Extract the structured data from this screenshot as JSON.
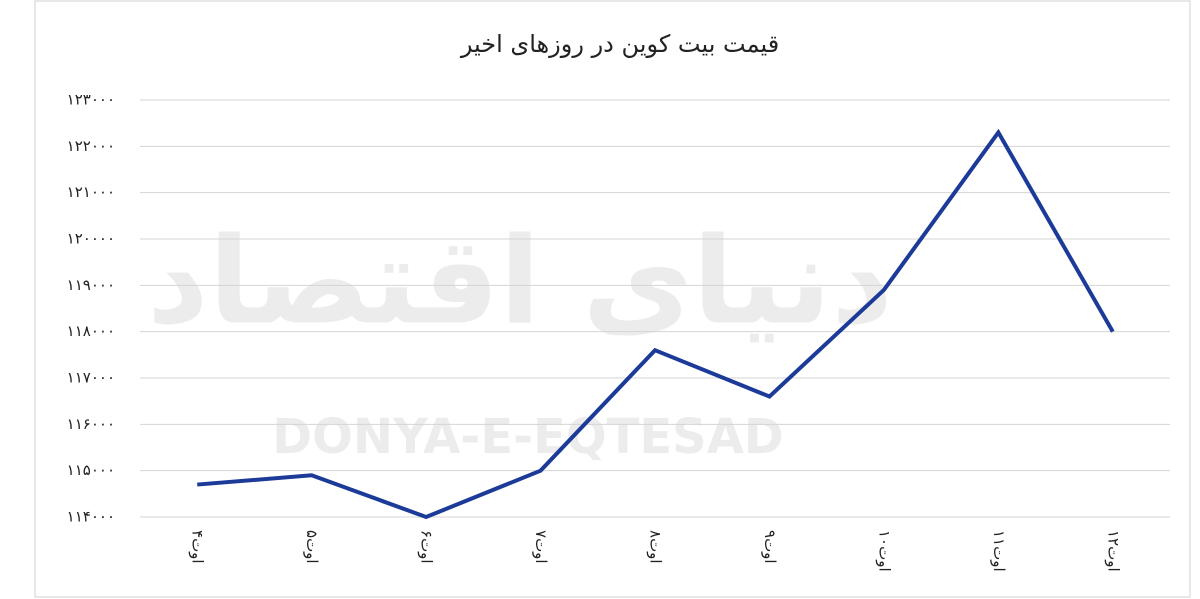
{
  "chart_data": {
    "type": "line",
    "title": "قیمت بیت کوین در روزهای اخیر",
    "watermark": "DONYA-E-EQTESAD",
    "watermark_fa": "دنیای اقتصاد",
    "categories": [
      "۴اوت",
      "۵اوت",
      "۶اوت",
      "۷اوت",
      "۸اوت",
      "۹اوت",
      "۱۰اوت",
      "۱۱اوت",
      "۱۲اوت"
    ],
    "series": [
      {
        "name": "قیمت بیت کوین",
        "color": "#1c3a98",
        "values": [
          114700,
          114900,
          114000,
          115000,
          117600,
          116600,
          118900,
          122300,
          118000
        ]
      }
    ],
    "ylim": [
      114000,
      123000
    ],
    "yticks": [
      {
        "value": 114000,
        "label": "۱۱۴۰۰۰"
      },
      {
        "value": 115000,
        "label": "۱۱۵۰۰۰"
      },
      {
        "value": 116000,
        "label": "۱۱۶۰۰۰"
      },
      {
        "value": 117000,
        "label": "۱۱۷۰۰۰"
      },
      {
        "value": 118000,
        "label": "۱۱۸۰۰۰"
      },
      {
        "value": 119000,
        "label": "۱۱۹۰۰۰"
      },
      {
        "value": 120000,
        "label": "۱۲۰۰۰۰"
      },
      {
        "value": 121000,
        "label": "۱۲۱۰۰۰"
      },
      {
        "value": 122000,
        "label": "۱۲۲۰۰۰"
      },
      {
        "value": 123000,
        "label": "۱۲۳۰۰۰"
      }
    ],
    "grid": true
  }
}
